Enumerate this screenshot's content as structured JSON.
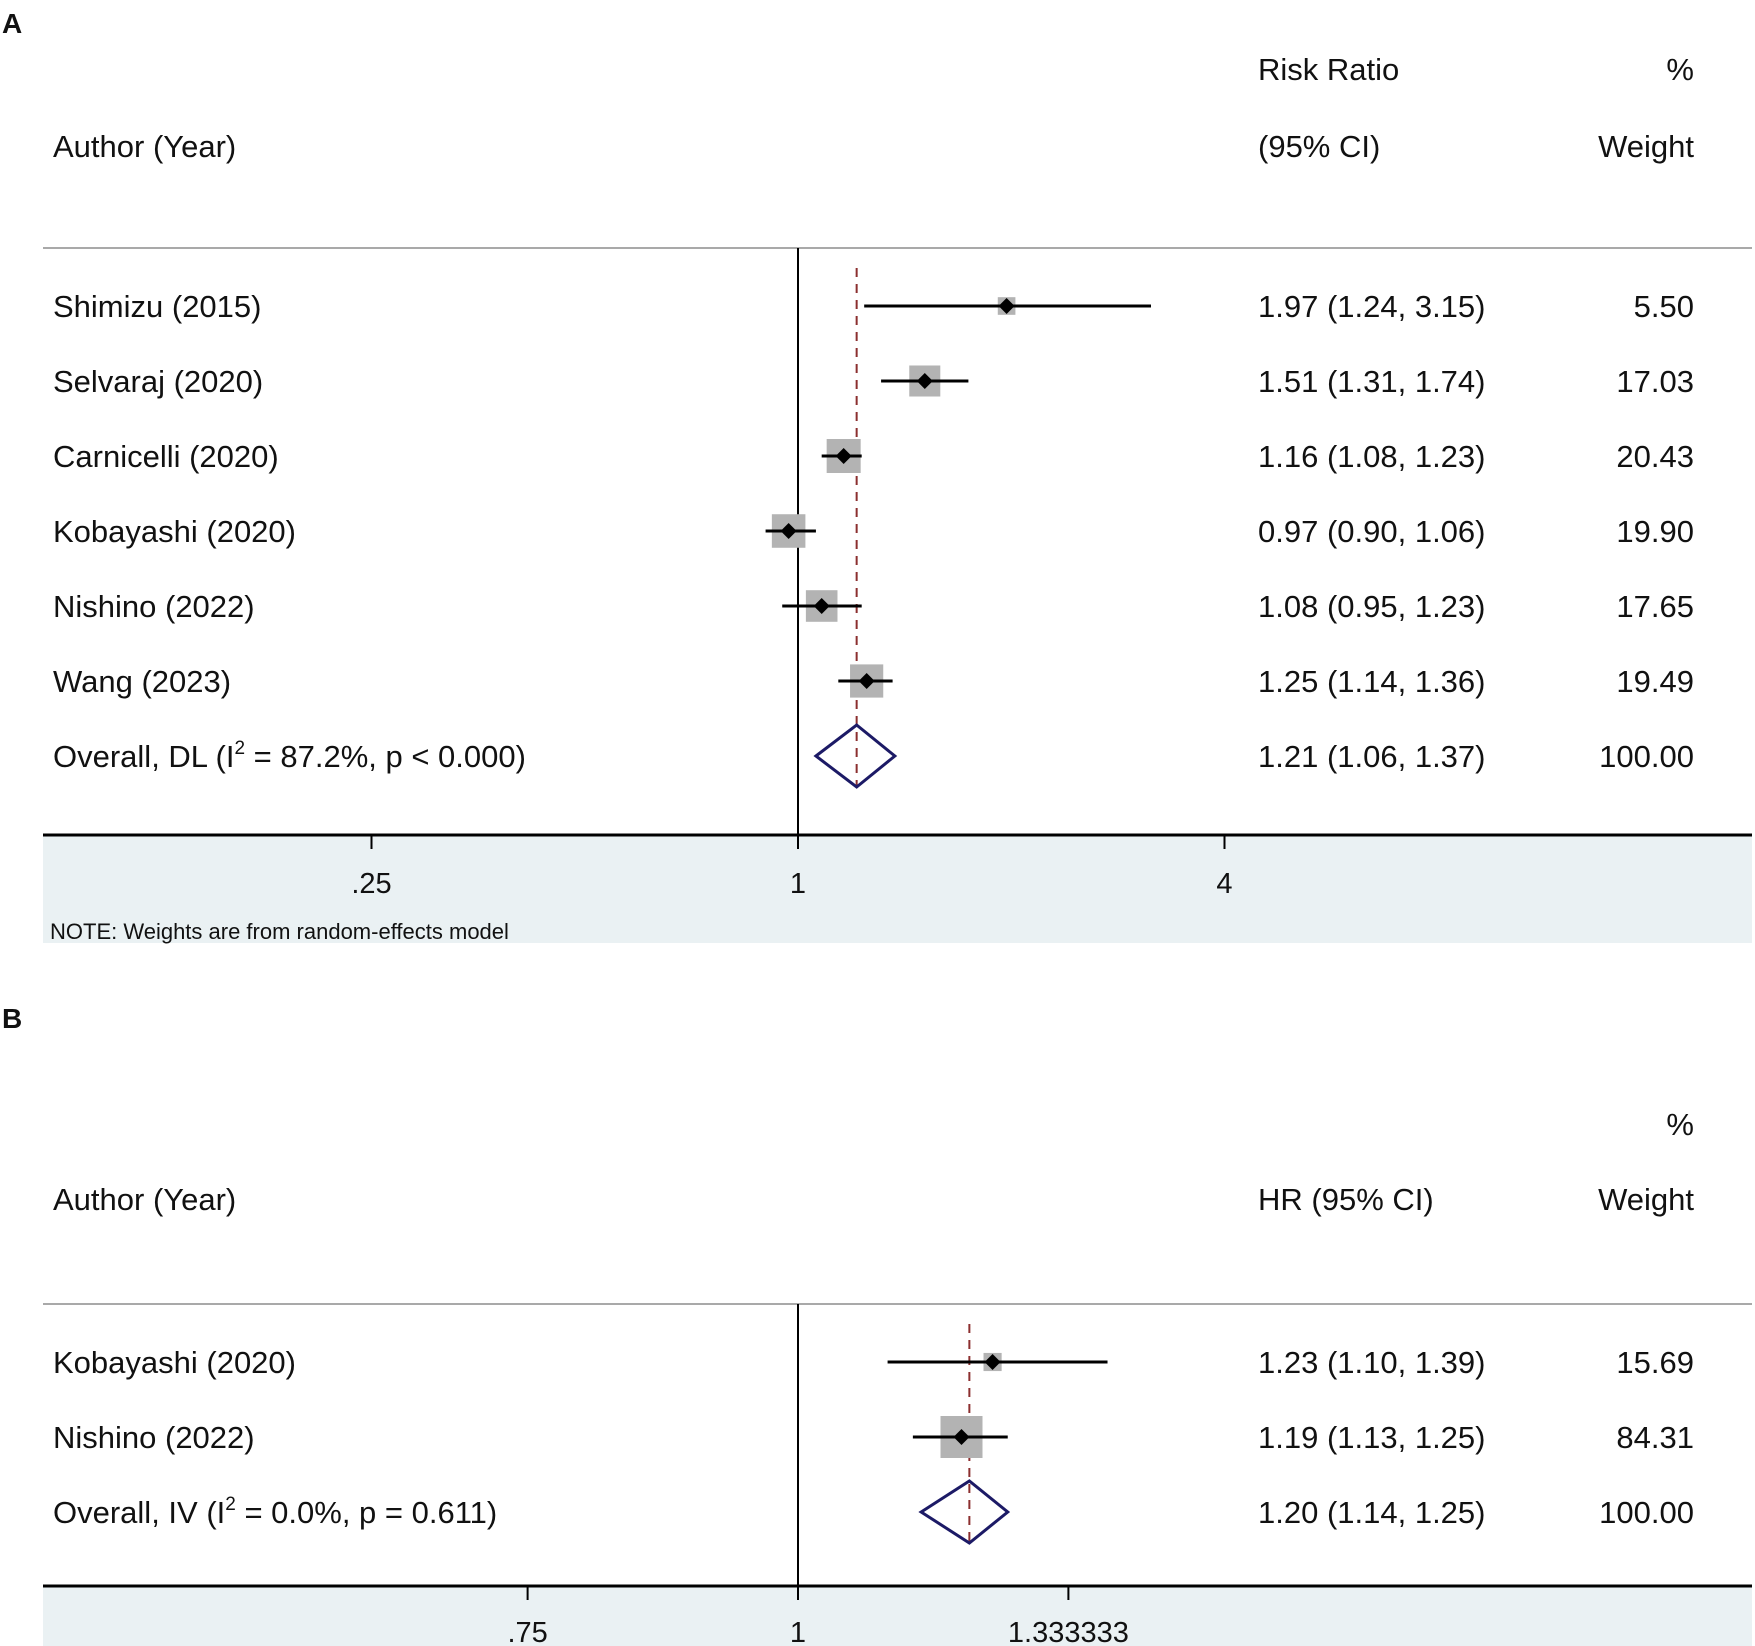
{
  "chart_data": [
    {
      "panel": "A",
      "type": "forest",
      "scale": "log",
      "null_value": 1,
      "overall_value": 1.21,
      "headers": {
        "study_line1": "",
        "study_line2": "Author (Year)",
        "effect_line1": "Risk Ratio",
        "effect_line2": "(95% CI)",
        "weight_line1": "%",
        "weight_line2": "Weight"
      },
      "studies": [
        {
          "label": "Shimizu (2015)",
          "estimate": 1.97,
          "lower": 1.24,
          "upper": 3.15,
          "ci_text": "1.97 (1.24, 3.15)",
          "weight": 5.5,
          "weight_text": "5.50"
        },
        {
          "label": "Selvaraj (2020)",
          "estimate": 1.51,
          "lower": 1.31,
          "upper": 1.74,
          "ci_text": "1.51 (1.31, 1.74)",
          "weight": 17.03,
          "weight_text": "17.03"
        },
        {
          "label": "Carnicelli (2020)",
          "estimate": 1.16,
          "lower": 1.08,
          "upper": 1.23,
          "ci_text": "1.16 (1.08, 1.23)",
          "weight": 20.43,
          "weight_text": "20.43"
        },
        {
          "label": "Kobayashi (2020)",
          "estimate": 0.97,
          "lower": 0.9,
          "upper": 1.06,
          "ci_text": "0.97 (0.90, 1.06)",
          "weight": 19.9,
          "weight_text": "19.90"
        },
        {
          "label": "Nishino (2022)",
          "estimate": 1.08,
          "lower": 0.95,
          "upper": 1.23,
          "ci_text": "1.08 (0.95, 1.23)",
          "weight": 17.65,
          "weight_text": "17.65"
        },
        {
          "label": "Wang (2023)",
          "estimate": 1.25,
          "lower": 1.14,
          "upper": 1.36,
          "ci_text": "1.25 (1.14, 1.36)",
          "weight": 19.49,
          "weight_text": "19.49"
        }
      ],
      "overall": {
        "label_prefix": "Overall, DL (I",
        "label_sup": "2",
        "label_suffix": " = 87.2%, p < 0.000)",
        "estimate": 1.21,
        "lower": 1.06,
        "upper": 1.37,
        "ci_text": "1.21 (1.06, 1.37)",
        "weight_text": "100.00"
      },
      "x_ticks": [
        {
          "value": 0.25,
          "label": ".25"
        },
        {
          "value": 1,
          "label": "1"
        },
        {
          "value": 4,
          "label": "4"
        }
      ],
      "note": "NOTE: Weights are from random-effects model"
    },
    {
      "panel": "B",
      "type": "forest",
      "scale": "log",
      "null_value": 1,
      "overall_value": 1.2,
      "headers": {
        "study_line1": "",
        "study_line2": "Author (Year)",
        "effect_line1": "",
        "effect_line2": "HR (95% CI)",
        "weight_line1": "%",
        "weight_line2": "Weight"
      },
      "studies": [
        {
          "label": "Kobayashi (2020)",
          "estimate": 1.23,
          "lower": 1.1,
          "upper": 1.39,
          "ci_text": "1.23 (1.10, 1.39)",
          "weight": 15.69,
          "weight_text": "15.69"
        },
        {
          "label": "Nishino (2022)",
          "estimate": 1.19,
          "lower": 1.13,
          "upper": 1.25,
          "ci_text": "1.19 (1.13, 1.25)",
          "weight": 84.31,
          "weight_text": "84.31"
        }
      ],
      "overall": {
        "label_prefix": "Overall, IV (I",
        "label_sup": "2",
        "label_suffix": " = 0.0%, p = 0.611)",
        "estimate": 1.2,
        "lower": 1.14,
        "upper": 1.25,
        "ci_text": "1.20 (1.14, 1.25)",
        "weight_text": "100.00"
      },
      "x_ticks": [
        {
          "value": 0.75,
          "label": ".75"
        },
        {
          "value": 1,
          "label": "1"
        },
        {
          "value": 1.333333,
          "label": "1.333333"
        }
      ],
      "note": ""
    }
  ],
  "colors": {
    "axis_band": "#eaf1f3",
    "line": "#000000",
    "weight_box": "#b3b3b3",
    "point": "#000000",
    "overall_line": "#8b2f2f",
    "diamond": "#1c1a66"
  }
}
